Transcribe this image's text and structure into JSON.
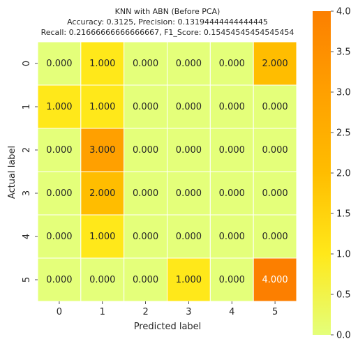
{
  "chart_data": {
    "type": "heatmap",
    "title_lines": [
      "KNN with ABN (Before PCA)",
      "Accuracy: 0.3125, Precision: 0.13194444444444445",
      "Recall: 0.21666666666666667, F1_Score: 0.15454545454545454"
    ],
    "xlabel": "Predicted label",
    "ylabel": "Actual label",
    "x_categories": [
      "0",
      "1",
      "2",
      "3",
      "4",
      "5"
    ],
    "y_categories": [
      "0",
      "1",
      "2",
      "3",
      "4",
      "5"
    ],
    "values": [
      [
        0,
        1,
        0,
        0,
        0,
        2
      ],
      [
        1,
        1,
        0,
        0,
        0,
        0
      ],
      [
        0,
        3,
        0,
        0,
        0,
        0
      ],
      [
        0,
        2,
        0,
        0,
        0,
        0
      ],
      [
        0,
        1,
        0,
        0,
        0,
        0
      ],
      [
        0,
        0,
        0,
        1,
        0,
        4
      ]
    ],
    "value_labels": [
      [
        "0.000",
        "1.000",
        "0.000",
        "0.000",
        "0.000",
        "2.000"
      ],
      [
        "1.000",
        "1.000",
        "0.000",
        "0.000",
        "0.000",
        "0.000"
      ],
      [
        "0.000",
        "3.000",
        "0.000",
        "0.000",
        "0.000",
        "0.000"
      ],
      [
        "0.000",
        "2.000",
        "0.000",
        "0.000",
        "0.000",
        "0.000"
      ],
      [
        "0.000",
        "1.000",
        "0.000",
        "0.000",
        "0.000",
        "0.000"
      ],
      [
        "0.000",
        "0.000",
        "0.000",
        "1.000",
        "0.000",
        "4.000"
      ]
    ],
    "colorbar": {
      "range": [
        0,
        4
      ],
      "ticks": [
        "0.0",
        "0.5",
        "1.0",
        "1.5",
        "2.0",
        "2.5",
        "3.0",
        "3.5",
        "4.0"
      ]
    },
    "colormap": "Wistia",
    "colors": [
      "#e4ff7a",
      "#ffe81a",
      "#ffbd00",
      "#ffa000",
      "#fc7f00"
    ],
    "annotation_colors": {
      "light": "#262626",
      "dark": "#ffffff"
    }
  }
}
